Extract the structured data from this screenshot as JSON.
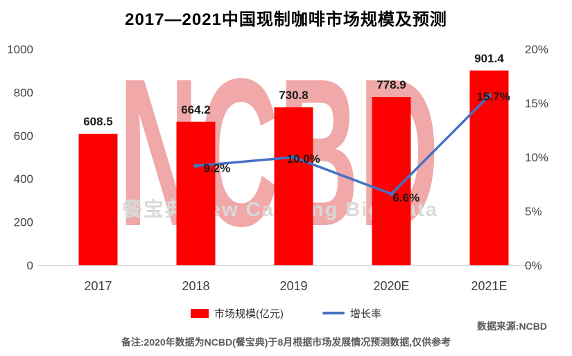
{
  "title": "2017—2021中国现制咖啡市场规模及预测",
  "watermark": {
    "big": "NCBD",
    "sub": "餐宝典 New Catering Big Data"
  },
  "legend": {
    "bars": "市场规模(亿元)",
    "line": "增长率"
  },
  "footer": {
    "source": "数据来源:NCBD",
    "note": "备注:2020年数据为NCBD(餐宝典)于8月根据市场发展情况预测数据,仅供参考"
  },
  "colors": {
    "bar": "#FF0000",
    "line": "#4472C4",
    "axis_text": "#404040",
    "label_text": "#1A1A1A",
    "note_text": "#595959",
    "watermark_big": "#F0A8A8",
    "watermark_sub": "#D9D9D9",
    "axis_line": "#D9D9D9"
  },
  "chart_data": {
    "type": "bar",
    "subtype": "bar+line combo",
    "title": "2017—2021中国现制咖啡市场规模及预测",
    "categories": [
      "2017",
      "2018",
      "2019",
      "2020E",
      "2021E"
    ],
    "series": [
      {
        "name": "市场规模(亿元)",
        "type": "bar",
        "axis": "left",
        "values": [
          608.5,
          664.2,
          730.8,
          778.9,
          901.4
        ],
        "labels": [
          "608.5",
          "664.2",
          "730.8",
          "778.9",
          "901.4"
        ]
      },
      {
        "name": "增长率",
        "type": "line",
        "axis": "right",
        "values": [
          null,
          9.2,
          10.0,
          6.6,
          15.7
        ],
        "labels": [
          null,
          "9.2%",
          "10.0%",
          "6.6%",
          "15.7%"
        ]
      }
    ],
    "left_axis": {
      "min": 0,
      "max": 1000,
      "ticks": [
        0,
        200,
        400,
        600,
        800,
        1000
      ]
    },
    "right_axis": {
      "min": 0,
      "max": 20,
      "tick_values": [
        0,
        5,
        10,
        15,
        20
      ],
      "ticks": [
        "0%",
        "5%",
        "10%",
        "15%",
        "20%"
      ]
    },
    "grid": false,
    "legend_position": "bottom"
  }
}
